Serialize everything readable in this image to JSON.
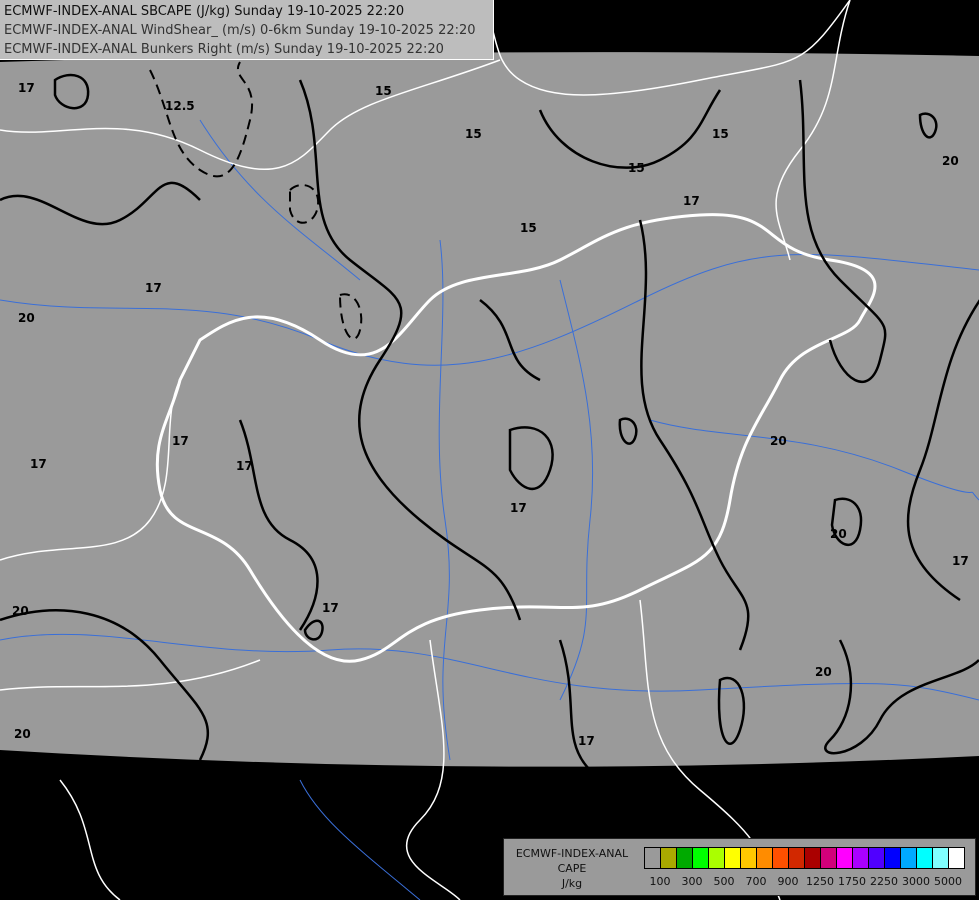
{
  "header": {
    "lines": [
      "ECMWF-INDEX-ANAL SBCAPE (J/kg) Sunday 19-10-2025 22:20",
      "ECMWF-INDEX-ANAL WindShear_ (m/s) 0-6km Sunday 19-10-2025 22:20",
      "ECMWF-INDEX-ANAL Bunkers Right (m/s) Sunday 19-10-2025 22:20"
    ]
  },
  "map": {
    "background_color": "#000000",
    "data_area_color": "#9a9a9a",
    "border_color": "#ffffff",
    "river_color": "#3a6fd8",
    "contour_labels": [
      "17",
      "12.5",
      "15",
      "15",
      "15",
      "15",
      "17",
      "20",
      "15",
      "17",
      "20",
      "17",
      "17",
      "17",
      "17",
      "20",
      "17",
      "20",
      "20",
      "17",
      "20",
      "20",
      "17"
    ]
  },
  "legend": {
    "title_lines": [
      "ECMWF-INDEX-ANAL",
      "CAPE",
      "J/kg"
    ],
    "colors": [
      "#9a9a9a",
      "#aaaa00",
      "#00aa00",
      "#00ff00",
      "#aaff00",
      "#ffff00",
      "#ffc800",
      "#ff8c00",
      "#ff5000",
      "#d22800",
      "#aa0000",
      "#d2007a",
      "#ff00ff",
      "#aa00ff",
      "#5000ff",
      "#0000ff",
      "#00aaff",
      "#00ffff",
      "#80ffff",
      "#ffffff"
    ],
    "tick_labels": [
      "100",
      "300",
      "500",
      "700",
      "900",
      "1250",
      "1750",
      "2250",
      "3000",
      "5000"
    ]
  }
}
